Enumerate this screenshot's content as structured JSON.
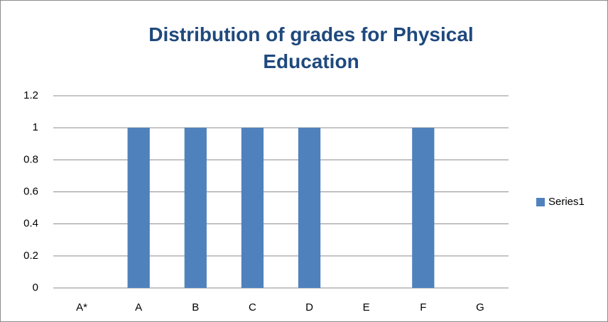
{
  "chart_data": {
    "type": "bar",
    "title": "Distribution of grades for Physical Education",
    "categories": [
      "A*",
      "A",
      "B",
      "C",
      "D",
      "E",
      "F",
      "G"
    ],
    "series": [
      {
        "name": "Series1",
        "color": "#4f81bd",
        "values": [
          0,
          1,
          1,
          1,
          1,
          0,
          1,
          0
        ]
      }
    ],
    "ylim": [
      0,
      1.2
    ],
    "yticks": [
      0,
      0.2,
      0.4,
      0.6,
      0.8,
      1,
      1.2
    ],
    "grid": true,
    "legend": "right"
  }
}
